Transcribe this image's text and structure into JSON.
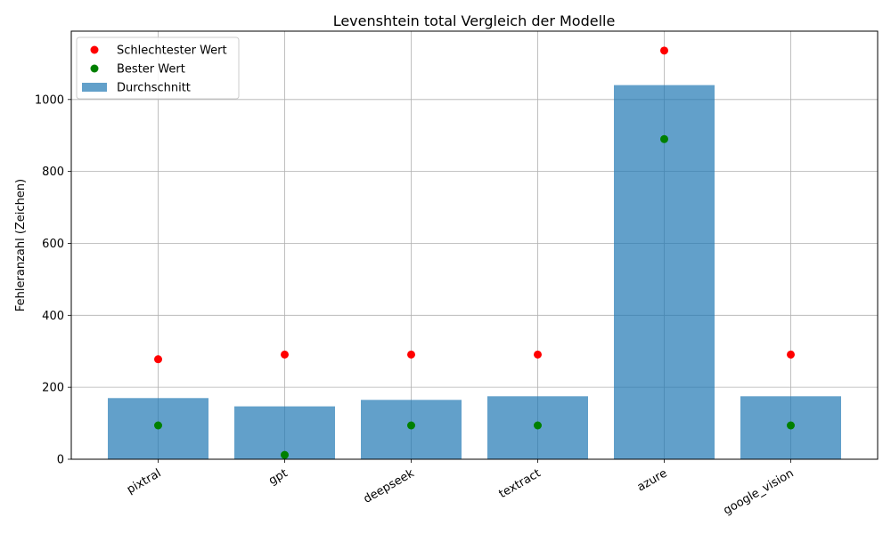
{
  "chart_data": {
    "type": "bar",
    "title": "Levenshtein total Vergleich der Modelle",
    "xlabel": "",
    "ylabel": "Fehleranzahl (Zeichen)",
    "ylim": [
      0,
      1190
    ],
    "yticks": [
      0,
      200,
      400,
      600,
      800,
      1000
    ],
    "grid": true,
    "legend_position": "top-left",
    "categories": [
      "pixtral",
      "gpt",
      "deepseek",
      "textract",
      "azure",
      "google_vision"
    ],
    "series": [
      {
        "name": "Schlechtester Wert",
        "kind": "scatter",
        "color": "#ff0000",
        "values": [
          278,
          291,
          291,
          291,
          1136,
          291
        ]
      },
      {
        "name": "Bester Wert",
        "kind": "scatter",
        "color": "#008000",
        "values": [
          94,
          12,
          94,
          94,
          890,
          94
        ]
      },
      {
        "name": "Durchschnitt",
        "kind": "bar",
        "color": "#1f77b4",
        "values": [
          170,
          147,
          165,
          175,
          1040,
          175
        ]
      }
    ]
  }
}
